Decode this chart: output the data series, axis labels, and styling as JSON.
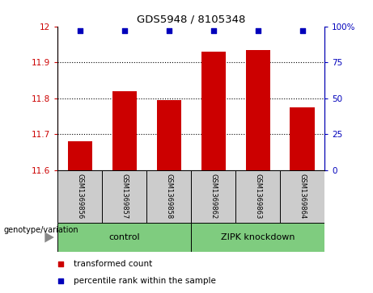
{
  "title": "GDS5948 / 8105348",
  "samples": [
    "GSM1369856",
    "GSM1369857",
    "GSM1369858",
    "GSM1369862",
    "GSM1369863",
    "GSM1369864"
  ],
  "bar_values": [
    11.68,
    11.82,
    11.795,
    11.93,
    11.935,
    11.775
  ],
  "percentile_values": [
    97,
    97,
    97,
    97,
    97,
    97
  ],
  "ylim_left": [
    11.6,
    12.0
  ],
  "ylim_right": [
    0,
    100
  ],
  "yticks_left": [
    11.6,
    11.7,
    11.8,
    11.9,
    12.0
  ],
  "yticks_right": [
    0,
    25,
    50,
    75,
    100
  ],
  "yticklabels_left": [
    "11.6",
    "11.7",
    "11.8",
    "11.9",
    "12"
  ],
  "yticklabels_right": [
    "0",
    "25",
    "50",
    "75",
    "100%"
  ],
  "bar_color": "#cc0000",
  "dot_color": "#0000bb",
  "grid_color": "#000000",
  "group1_label": "control",
  "group2_label": "ZIPK knockdown",
  "group_color": "#7fcc7f",
  "sample_box_color": "#cccccc",
  "genotype_label": "genotype/variation",
  "legend_bar_label": "transformed count",
  "legend_dot_label": "percentile rank within the sample",
  "n_group1": 3,
  "n_group2": 3,
  "bar_width": 0.55
}
